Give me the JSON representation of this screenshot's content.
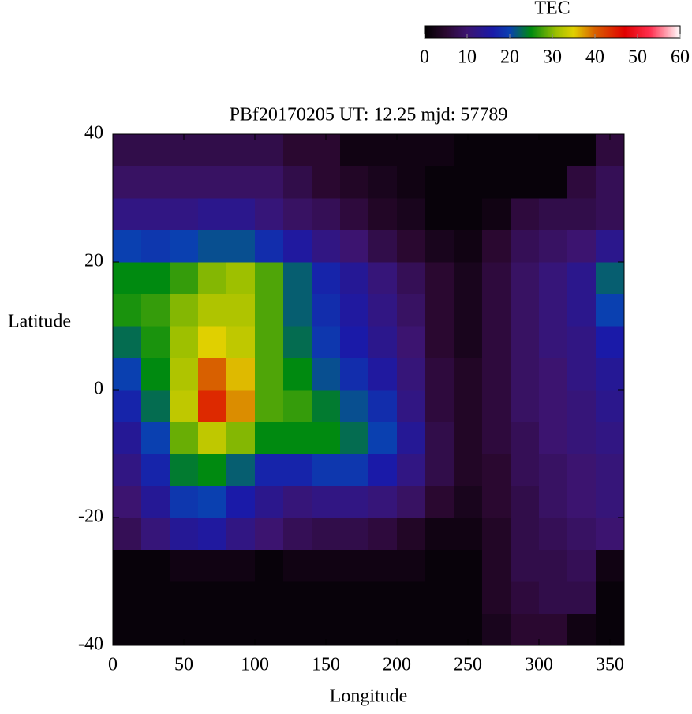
{
  "chart_data": {
    "type": "heatmap",
    "title": "PBf20170205  UT: 12.25  mjd: 57789",
    "xlabel": "Longitude",
    "ylabel": "Latitude",
    "xlim": [
      0,
      360
    ],
    "ylim": [
      -40,
      40
    ],
    "xticks": [
      0,
      50,
      100,
      150,
      200,
      250,
      300,
      350
    ],
    "yticks": [
      -40,
      -20,
      0,
      20,
      40
    ],
    "x": [
      10,
      30,
      50,
      70,
      90,
      110,
      130,
      150,
      170,
      190,
      210,
      230,
      250,
      270,
      290,
      310,
      330,
      350
    ],
    "y": [
      -37.5,
      -32.5,
      -27.5,
      -22.5,
      -17.5,
      -12.5,
      -7.5,
      -2.5,
      2.5,
      7.5,
      12.5,
      17.5,
      22.5,
      27.5,
      32.5,
      37.5
    ],
    "z": [
      [
        1,
        1,
        1,
        1,
        1,
        1,
        1,
        1,
        1,
        1,
        1,
        1,
        1,
        3,
        5,
        5,
        2,
        1
      ],
      [
        1,
        1,
        1,
        1,
        1,
        1,
        1,
        1,
        1,
        1,
        1,
        1,
        1,
        4,
        6,
        7,
        7,
        1
      ],
      [
        1,
        1,
        2,
        2,
        2,
        1,
        2,
        2,
        2,
        2,
        2,
        1,
        1,
        4,
        7,
        7,
        8,
        2
      ],
      [
        8,
        11,
        14,
        15,
        12,
        10,
        8,
        7,
        7,
        6,
        4,
        2,
        2,
        4,
        7,
        8,
        9,
        10
      ],
      [
        10,
        14,
        19,
        20,
        16,
        13,
        11,
        12,
        12,
        11,
        9,
        5,
        3,
        5,
        7,
        9,
        10,
        11
      ],
      [
        12,
        17,
        24,
        25,
        22,
        17,
        17,
        19,
        19,
        16,
        12,
        7,
        4,
        5,
        8,
        9,
        10,
        11
      ],
      [
        14,
        20,
        29,
        33,
        30,
        25,
        25,
        25,
        23,
        20,
        14,
        7,
        4,
        6,
        8,
        10,
        11,
        12
      ],
      [
        17,
        23,
        33,
        44,
        38,
        28,
        27,
        24,
        21,
        18,
        12,
        6,
        4,
        6,
        9,
        10,
        11,
        13
      ],
      [
        20,
        25,
        32,
        40,
        36,
        28,
        25,
        21,
        18,
        15,
        11,
        6,
        4,
        6,
        9,
        10,
        12,
        14
      ],
      [
        23,
        26,
        31,
        35,
        33,
        28,
        23,
        19,
        16,
        13,
        10,
        5,
        3,
        6,
        9,
        11,
        12,
        16
      ],
      [
        26,
        27,
        30,
        32,
        32,
        28,
        22,
        18,
        15,
        12,
        9,
        5,
        3,
        6,
        9,
        11,
        13,
        20
      ],
      [
        25,
        25,
        27,
        30,
        31,
        28,
        22,
        17,
        14,
        11,
        8,
        5,
        3,
        6,
        9,
        11,
        13,
        22
      ],
      [
        20,
        19,
        20,
        21,
        21,
        18,
        15,
        12,
        10,
        7,
        5,
        3,
        2,
        5,
        8,
        9,
        10,
        13
      ],
      [
        12,
        12,
        12,
        13,
        13,
        11,
        9,
        8,
        6,
        4,
        3,
        1,
        1,
        2,
        6,
        7,
        7,
        8
      ],
      [
        9,
        9,
        9,
        9,
        9,
        9,
        7,
        5,
        4,
        3,
        2,
        1,
        1,
        1,
        1,
        1,
        6,
        8
      ],
      [
        7,
        7,
        7,
        7,
        7,
        7,
        5,
        5,
        2,
        2,
        2,
        2,
        1,
        1,
        1,
        1,
        1,
        6
      ]
    ],
    "colorbar_title": "TEC",
    "clim": [
      0,
      60
    ],
    "cticks": [
      0,
      10,
      20,
      30,
      40,
      50,
      60
    ],
    "colorscale": [
      [
        0,
        "#000000"
      ],
      [
        5,
        "#2a0830"
      ],
      [
        10,
        "#3c1470"
      ],
      [
        16,
        "#1a1aa8"
      ],
      [
        20,
        "#0a40b0"
      ],
      [
        25,
        "#008a10"
      ],
      [
        31,
        "#9ec000"
      ],
      [
        35,
        "#e0d000"
      ],
      [
        40,
        "#d86000"
      ],
      [
        47,
        "#e00000"
      ],
      [
        53,
        "#ff3050"
      ],
      [
        60,
        "#ffffff"
      ]
    ]
  }
}
